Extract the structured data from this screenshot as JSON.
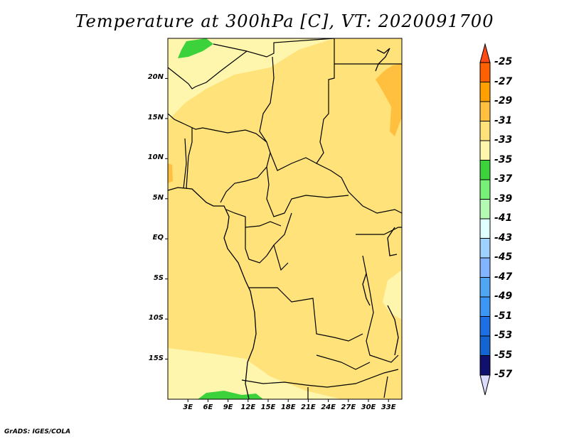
{
  "title": "Temperature at 300hPa [C], VT: 2020091700",
  "credit": "GrADS: IGES/COLA",
  "map": {
    "y_ticks": [
      "20N",
      "15N",
      "10N",
      "5N",
      "EQ",
      "5S",
      "10S",
      "15S"
    ],
    "y_tick_lats": [
      20,
      15,
      10,
      5,
      0,
      -5,
      -10,
      -15
    ],
    "x_ticks": [
      "3E",
      "6E",
      "9E",
      "12E",
      "15E",
      "18E",
      "21E",
      "24E",
      "27E",
      "30E",
      "33E"
    ],
    "x_tick_lons": [
      3,
      6,
      9,
      12,
      15,
      18,
      21,
      24,
      27,
      30,
      33
    ],
    "lon_range": [
      0,
      35
    ],
    "lat_range": [
      -20,
      25
    ]
  },
  "colorbar": {
    "labels": [
      "-25",
      "-27",
      "-29",
      "-31",
      "-33",
      "-35",
      "-37",
      "-39",
      "-41",
      "-43",
      "-45",
      "-47",
      "-49",
      "-51",
      "-53",
      "-55",
      "-57"
    ],
    "top_arrow_color": "#ff4a14",
    "bottom_arrow_color": "#dcdcff",
    "colors": [
      "#ff6000",
      "#ffa000",
      "#ffc040",
      "#ffe27a",
      "#fff6ad",
      "#3cd23c",
      "#78f078",
      "#b4fab4",
      "#e0ffff",
      "#a0d2ff",
      "#82b4ff",
      "#50a5f5",
      "#3c96f5",
      "#1e6ee6",
      "#1464d2",
      "#10106e"
    ]
  }
}
